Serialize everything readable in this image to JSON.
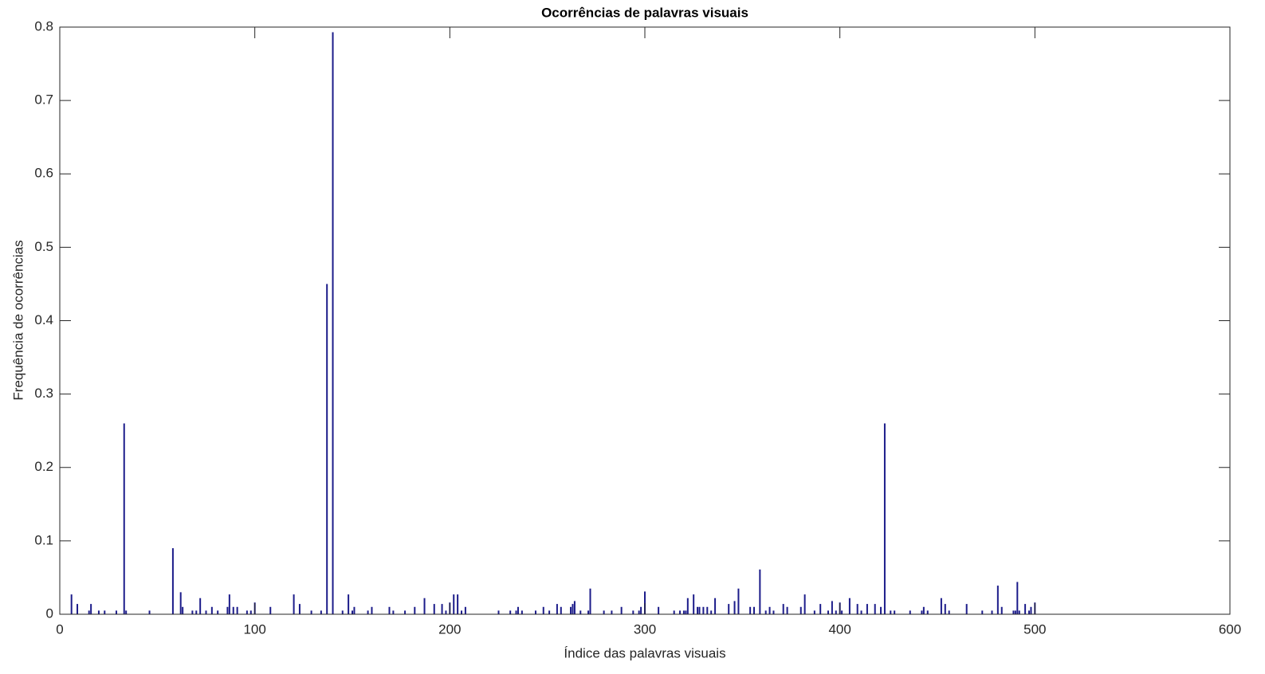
{
  "chart_data": {
    "type": "bar",
    "title": "Ocorrências de palavras visuais",
    "xlabel": "Índice das palavras visuais",
    "ylabel": "Frequência de ocorrências",
    "color": "#1c1c8a",
    "xlim": [
      0,
      600
    ],
    "xticks": [
      0,
      100,
      200,
      300,
      400,
      500,
      600
    ],
    "ylim": [
      0,
      0.8
    ],
    "yticks": [
      0,
      0.1,
      0.2,
      0.3,
      0.4,
      0.5,
      0.6,
      0.7,
      0.8
    ],
    "x": [
      6,
      9,
      15,
      16,
      20,
      23,
      29,
      33,
      34,
      46,
      58,
      62,
      63,
      68,
      70,
      72,
      75,
      78,
      81,
      86,
      87,
      89,
      91,
      96,
      98,
      100,
      108,
      120,
      123,
      129,
      134,
      137,
      140,
      145,
      148,
      150,
      151,
      158,
      160,
      169,
      171,
      177,
      182,
      187,
      192,
      196,
      198,
      200,
      202,
      204,
      206,
      208,
      225,
      231,
      234,
      235,
      237,
      244,
      248,
      251,
      255,
      257,
      262,
      263,
      264,
      267,
      271,
      272,
      279,
      283,
      288,
      294,
      297,
      298,
      300,
      307,
      315,
      318,
      320,
      321,
      322,
      325,
      327,
      328,
      330,
      332,
      334,
      336,
      343,
      346,
      348,
      354,
      356,
      359,
      362,
      364,
      366,
      371,
      373,
      380,
      382,
      387,
      390,
      394,
      396,
      398,
      400,
      401,
      405,
      409,
      411,
      414,
      418,
      421,
      423,
      426,
      428,
      436,
      442,
      443,
      445,
      452,
      454,
      456,
      465,
      473,
      478,
      481,
      483,
      489,
      490,
      491,
      492,
      495,
      497,
      498,
      500
    ],
    "values": [
      0.027,
      0.014,
      0.005,
      0.014,
      0.005,
      0.005,
      0.005,
      0.26,
      0.005,
      0.005,
      0.09,
      0.03,
      0.01,
      0.005,
      0.005,
      0.022,
      0.005,
      0.01,
      0.005,
      0.01,
      0.027,
      0.01,
      0.01,
      0.005,
      0.005,
      0.016,
      0.01,
      0.027,
      0.014,
      0.005,
      0.005,
      0.45,
      0.793,
      0.005,
      0.027,
      0.005,
      0.01,
      0.005,
      0.01,
      0.01,
      0.005,
      0.005,
      0.01,
      0.022,
      0.014,
      0.014,
      0.005,
      0.016,
      0.027,
      0.027,
      0.005,
      0.01,
      0.005,
      0.005,
      0.005,
      0.01,
      0.005,
      0.005,
      0.01,
      0.005,
      0.014,
      0.01,
      0.01,
      0.014,
      0.018,
      0.005,
      0.005,
      0.035,
      0.005,
      0.005,
      0.01,
      0.005,
      0.005,
      0.01,
      0.031,
      0.01,
      0.005,
      0.005,
      0.005,
      0.005,
      0.022,
      0.027,
      0.01,
      0.01,
      0.01,
      0.01,
      0.005,
      0.022,
      0.014,
      0.018,
      0.035,
      0.01,
      0.01,
      0.061,
      0.005,
      0.01,
      0.005,
      0.014,
      0.01,
      0.01,
      0.027,
      0.005,
      0.014,
      0.005,
      0.018,
      0.005,
      0.016,
      0.005,
      0.022,
      0.014,
      0.005,
      0.014,
      0.014,
      0.01,
      0.26,
      0.005,
      0.005,
      0.005,
      0.005,
      0.01,
      0.005,
      0.022,
      0.014,
      0.005,
      0.014,
      0.005,
      0.005,
      0.039,
      0.01,
      0.005,
      0.005,
      0.044,
      0.005,
      0.014,
      0.005,
      0.01,
      0.016
    ]
  }
}
